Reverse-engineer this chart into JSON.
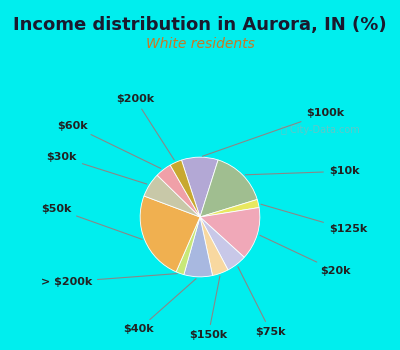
{
  "title": "Income distribution in Aurora, IN (%)",
  "subtitle": "White residents",
  "title_color": "#1a1a2e",
  "subtitle_color": "#cc7722",
  "bg_cyan": "#00eeee",
  "bg_inner": "#e0f5e8",
  "slices": [
    {
      "label": "$100k",
      "value": 9,
      "color": "#b3a8d5"
    },
    {
      "label": "$10k",
      "value": 14,
      "color": "#a0be90"
    },
    {
      "label": "$125k",
      "value": 2,
      "color": "#e8e860"
    },
    {
      "label": "$20k",
      "value": 13,
      "color": "#f0a8b8"
    },
    {
      "label": "$75k",
      "value": 5,
      "color": "#c8c8e8"
    },
    {
      "label": "$150k",
      "value": 4,
      "color": "#f8d8a0"
    },
    {
      "label": "$40k",
      "value": 7,
      "color": "#a8b8e0"
    },
    {
      "label": "> $200k",
      "value": 2,
      "color": "#c8e878"
    },
    {
      "label": "$50k",
      "value": 22,
      "color": "#f0b050"
    },
    {
      "label": "$30k",
      "value": 6,
      "color": "#c8c8a8"
    },
    {
      "label": "$60k",
      "value": 4,
      "color": "#f0a0a8"
    },
    {
      "label": "$200k",
      "value": 3,
      "color": "#c8a830"
    }
  ],
  "title_fontsize": 13,
  "subtitle_fontsize": 10,
  "label_fontsize": 8
}
